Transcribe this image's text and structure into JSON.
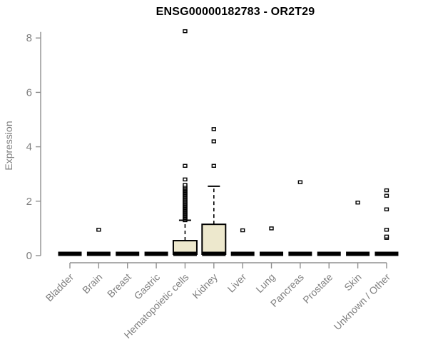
{
  "page": {
    "background": "#ffffff"
  },
  "chart_data": {
    "type": "boxplot",
    "title": "ENSG00000182783 - OR2T29",
    "ylabel": "Expression",
    "xlabel": "",
    "ylim": [
      0,
      8.4
    ],
    "yticks": [
      0,
      2,
      4,
      6,
      8
    ],
    "grid": false,
    "legend": "none",
    "categories": [
      "Bladder",
      "Brain",
      "Breast",
      "Gastric",
      "Hematopoietic cells",
      "Kidney",
      "Liver",
      "Lung",
      "Pancreas",
      "Prostate",
      "Skin",
      "Unknown / Other"
    ],
    "colors": {
      "box_fill": "#EDE8CD",
      "box_border": "#000000",
      "median": "#000000",
      "whisker": "#000000",
      "outlier_stroke": "#000000",
      "outlier_fill": "#ffffff",
      "axis_line": "#909090",
      "tick_label": "#7f7f7f",
      "title": "#000000"
    },
    "boxes": [
      {
        "category": "Bladder",
        "q1": 0,
        "median": 0,
        "q3": 0,
        "whisker_low": 0,
        "whisker_high": 0,
        "outliers": []
      },
      {
        "category": "Brain",
        "q1": 0,
        "median": 0,
        "q3": 0,
        "whisker_low": 0,
        "whisker_high": 0,
        "outliers": [
          0.95
        ]
      },
      {
        "category": "Breast",
        "q1": 0,
        "median": 0,
        "q3": 0,
        "whisker_low": 0,
        "whisker_high": 0,
        "outliers": []
      },
      {
        "category": "Gastric",
        "q1": 0,
        "median": 0,
        "q3": 0,
        "whisker_low": 0,
        "whisker_high": 0,
        "outliers": []
      },
      {
        "category": "Hematopoietic cells",
        "q1": 0,
        "median": 0,
        "q3": 0.55,
        "whisker_low": 0,
        "whisker_high": 1.3,
        "outliers": [
          1.3,
          1.34,
          1.38,
          1.42,
          1.46,
          1.5,
          1.54,
          1.58,
          1.62,
          1.66,
          1.7,
          1.74,
          1.78,
          1.82,
          1.86,
          1.9,
          1.94,
          1.98,
          2.02,
          2.06,
          2.1,
          2.14,
          2.18,
          2.22,
          2.26,
          2.3,
          2.34,
          2.38,
          2.42,
          2.46,
          2.5,
          2.55,
          2.6,
          2.8,
          3.3,
          8.25
        ]
      },
      {
        "category": "Kidney",
        "q1": 0,
        "median": 0,
        "q3": 1.15,
        "whisker_low": 0,
        "whisker_high": 2.55,
        "outliers": [
          3.3,
          4.2,
          4.65
        ]
      },
      {
        "category": "Liver",
        "q1": 0,
        "median": 0,
        "q3": 0,
        "whisker_low": 0,
        "whisker_high": 0,
        "outliers": [
          0.93
        ]
      },
      {
        "category": "Lung",
        "q1": 0,
        "median": 0,
        "q3": 0,
        "whisker_low": 0,
        "whisker_high": 0,
        "outliers": [
          1.0
        ]
      },
      {
        "category": "Pancreas",
        "q1": 0,
        "median": 0,
        "q3": 0,
        "whisker_low": 0,
        "whisker_high": 0,
        "outliers": [
          2.7
        ]
      },
      {
        "category": "Prostate",
        "q1": 0,
        "median": 0,
        "q3": 0,
        "whisker_low": 0,
        "whisker_high": 0,
        "outliers": []
      },
      {
        "category": "Skin",
        "q1": 0,
        "median": 0,
        "q3": 0,
        "whisker_low": 0,
        "whisker_high": 0,
        "outliers": [
          1.95
        ]
      },
      {
        "category": "Unknown / Other",
        "q1": 0,
        "median": 0,
        "q3": 0,
        "whisker_low": 0,
        "whisker_high": 0,
        "outliers": [
          0.65,
          0.7,
          0.95,
          1.7,
          2.2,
          2.4
        ]
      }
    ]
  }
}
